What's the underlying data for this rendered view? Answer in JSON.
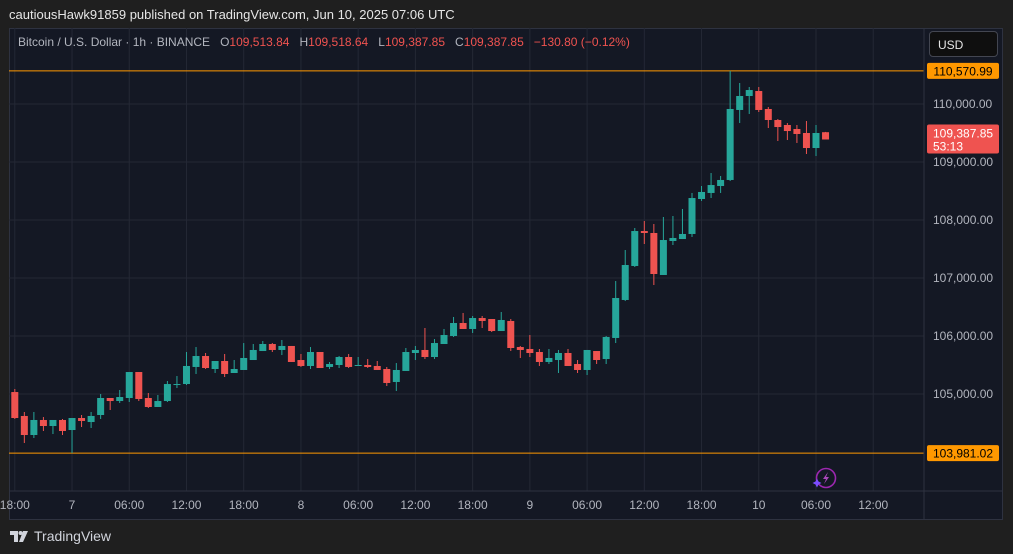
{
  "header": {
    "published": "cautiousHawk91859 published on TradingView.com, Jun 10, 2025 07:06 UTC"
  },
  "legend": {
    "symbol": "Bitcoin / U.S. Dollar · 1h · BINANCE",
    "o_label": "O",
    "o": "109,513.84",
    "h_label": "H",
    "h": "109,518.64",
    "l_label": "L",
    "l": "109,387.85",
    "c_label": "C",
    "c": "109,387.85",
    "change": "−130.80 (−0.12%)"
  },
  "currency_button": "USD",
  "footer": {
    "brand": "TradingView"
  },
  "colors": {
    "up": "#26a69a",
    "down": "#ef5350",
    "line": "#ff9800",
    "background": "#141824"
  },
  "icons": {
    "alert": "lightning-bolt-icon",
    "logo": "tradingview-logo-icon"
  },
  "chart_data": {
    "type": "candlestick",
    "interval": "1h",
    "start": "2025-06-06 18:00",
    "ylim": [
      103200,
      110800
    ],
    "price_ticks": [
      "110,000.00",
      "109,000.00",
      "108,000.00",
      "107,000.00",
      "106,000.00",
      "105,000.00"
    ],
    "price_tick_values": [
      110000,
      109000,
      108000,
      107000,
      106000,
      105000
    ],
    "time_ticks": [
      {
        "label": "18:00",
        "hour": 0
      },
      {
        "label": "7",
        "hour": 6
      },
      {
        "label": "06:00",
        "hour": 12
      },
      {
        "label": "12:00",
        "hour": 18
      },
      {
        "label": "18:00",
        "hour": 24
      },
      {
        "label": "8",
        "hour": 30
      },
      {
        "label": "06:00",
        "hour": 36
      },
      {
        "label": "12:00",
        "hour": 42
      },
      {
        "label": "18:00",
        "hour": 48
      },
      {
        "label": "9",
        "hour": 54
      },
      {
        "label": "06:00",
        "hour": 60
      },
      {
        "label": "12:00",
        "hour": 66
      },
      {
        "label": "18:00",
        "hour": 72
      },
      {
        "label": "10",
        "hour": 78
      },
      {
        "label": "06:00",
        "hour": 84
      },
      {
        "label": "12:00",
        "hour": 90
      }
    ],
    "horizontal_lines": [
      {
        "value": 110570.99,
        "label": "110,570.99"
      },
      {
        "value": 103981.02,
        "label": "103,981.02"
      }
    ],
    "last_price": {
      "value": 109387.85,
      "label": "109,387.85",
      "countdown": "53:13"
    },
    "candles_ohlc": [
      [
        105034,
        105086,
        104569,
        104586
      ],
      [
        104621,
        104690,
        104155,
        104293
      ],
      [
        104293,
        104690,
        104241,
        104552
      ],
      [
        104552,
        104603,
        104362,
        104448
      ],
      [
        104448,
        104552,
        104310,
        104552
      ],
      [
        104552,
        104569,
        104293,
        104362
      ],
      [
        104379,
        104586,
        103981,
        104586
      ],
      [
        104586,
        104638,
        104431,
        104535
      ],
      [
        104517,
        104690,
        104414,
        104621
      ],
      [
        104638,
        105000,
        104569,
        104931
      ],
      [
        104931,
        104931,
        104724,
        104879
      ],
      [
        104879,
        105069,
        104845,
        104948
      ],
      [
        104931,
        105379,
        104862,
        105379
      ],
      [
        105379,
        105379,
        104879,
        104914
      ],
      [
        104931,
        105017,
        104759,
        104776
      ],
      [
        104776,
        104983,
        104776,
        104879
      ],
      [
        104879,
        105224,
        104862,
        105172
      ],
      [
        105155,
        105310,
        105103,
        105172
      ],
      [
        105172,
        105724,
        105155,
        105483
      ],
      [
        105466,
        105810,
        105345,
        105655
      ],
      [
        105655,
        105707,
        105431,
        105448
      ],
      [
        105431,
        105569,
        105362,
        105569
      ],
      [
        105569,
        105690,
        105293,
        105345
      ],
      [
        105362,
        105586,
        105362,
        105431
      ],
      [
        105414,
        105879,
        105414,
        105621
      ],
      [
        105586,
        105862,
        105586,
        105759
      ],
      [
        105741,
        105914,
        105741,
        105862
      ],
      [
        105862,
        105879,
        105724,
        105759
      ],
      [
        105759,
        105931,
        105672,
        105828
      ],
      [
        105828,
        105828,
        105552,
        105552
      ],
      [
        105586,
        105690,
        105466,
        105483
      ],
      [
        105483,
        105810,
        105431,
        105724
      ],
      [
        105724,
        105724,
        105448,
        105448
      ],
      [
        105466,
        105552,
        105431,
        105517
      ],
      [
        105500,
        105655,
        105448,
        105638
      ],
      [
        105638,
        105690,
        105448,
        105466
      ],
      [
        105483,
        105638,
        105483,
        105500
      ],
      [
        105500,
        105603,
        105448,
        105466
      ],
      [
        105483,
        105569,
        105414,
        105414
      ],
      [
        105431,
        105466,
        105138,
        105190
      ],
      [
        105207,
        105534,
        105052,
        105414
      ],
      [
        105397,
        105793,
        105397,
        105724
      ],
      [
        105707,
        105828,
        105586,
        105759
      ],
      [
        105759,
        106138,
        105603,
        105638
      ],
      [
        105638,
        105948,
        105603,
        105879
      ],
      [
        105862,
        106121,
        105862,
        106017
      ],
      [
        106000,
        106328,
        105983,
        106224
      ],
      [
        106224,
        106397,
        106121,
        106121
      ],
      [
        106121,
        106345,
        106052,
        106310
      ],
      [
        106310,
        106345,
        106138,
        106259
      ],
      [
        106293,
        106293,
        106069,
        106086
      ],
      [
        106086,
        106414,
        106086,
        106276
      ],
      [
        106259,
        106293,
        105741,
        105793
      ],
      [
        105810,
        105828,
        105621,
        105759
      ],
      [
        105776,
        106017,
        105638,
        105707
      ],
      [
        105724,
        105776,
        105483,
        105552
      ],
      [
        105552,
        105776,
        105517,
        105621
      ],
      [
        105586,
        105759,
        105362,
        105707
      ],
      [
        105707,
        105776,
        105483,
        105483
      ],
      [
        105517,
        105586,
        105362,
        105414
      ],
      [
        105414,
        105759,
        105328,
        105759
      ],
      [
        105741,
        105741,
        105517,
        105586
      ],
      [
        105603,
        106000,
        105517,
        105983
      ],
      [
        105966,
        106948,
        105879,
        106655
      ],
      [
        106621,
        107483,
        106603,
        107224
      ],
      [
        107207,
        107862,
        107190,
        107810
      ],
      [
        107810,
        107983,
        107586,
        107776
      ],
      [
        107776,
        107931,
        106879,
        107069
      ],
      [
        107052,
        108052,
        107052,
        107655
      ],
      [
        107638,
        108069,
        107569,
        107690
      ],
      [
        107672,
        108190,
        107672,
        107759
      ],
      [
        107759,
        108466,
        107707,
        108379
      ],
      [
        108362,
        108586,
        108328,
        108483
      ],
      [
        108466,
        108810,
        108379,
        108603
      ],
      [
        108586,
        108759,
        108466,
        108690
      ],
      [
        108690,
        110570.99,
        108672,
        109914
      ],
      [
        109897,
        110362,
        109672,
        110138
      ],
      [
        110138,
        110293,
        109828,
        110241
      ],
      [
        110224,
        110293,
        109862,
        109897
      ],
      [
        109914,
        109948,
        109586,
        109724
      ],
      [
        109724,
        109741,
        109362,
        109603
      ],
      [
        109638,
        109672,
        109379,
        109534
      ],
      [
        109569,
        109638,
        109328,
        109483
      ],
      [
        109500,
        109707,
        109138,
        109241
      ],
      [
        109241,
        109638,
        109103,
        109500
      ],
      [
        109513.84,
        109518.64,
        109387.85,
        109387.85
      ]
    ]
  }
}
